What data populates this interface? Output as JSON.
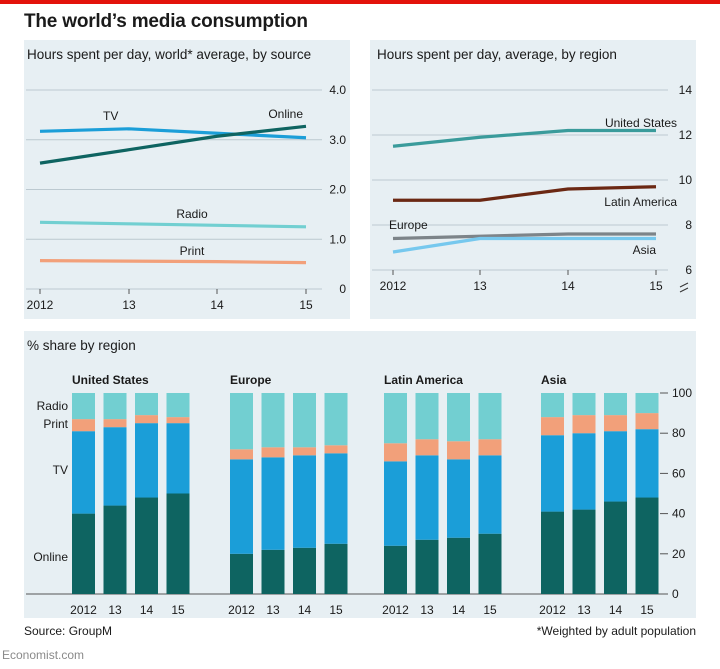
{
  "title": "The world’s media consumption",
  "source": "Source: GroupM",
  "footnote": "*Weighted by adult population",
  "brand": "Economist.com",
  "colors": {
    "online": "#0e6461",
    "tv": "#1b9ed8",
    "print": "#f2a07a",
    "radio": "#72cfd1",
    "us": "#3a9b9b",
    "latin": "#6b2813",
    "europe": "#7d8489",
    "asia": "#76c8ee",
    "brand_red": "#e3120b"
  },
  "chart_data": [
    {
      "type": "line",
      "title": "Hours spent per day, world* average, by source",
      "x": [
        2012,
        2013,
        2014,
        2015
      ],
      "xticks": [
        "2012",
        "13",
        "14",
        "15"
      ],
      "ylim": [
        0,
        4.0
      ],
      "yticks": [
        "0",
        "1.0",
        "2.0",
        "3.0",
        "4.0"
      ],
      "series": [
        {
          "name": "TV",
          "values": [
            3.17,
            3.22,
            3.13,
            3.04
          ]
        },
        {
          "name": "Online",
          "values": [
            2.53,
            2.8,
            3.07,
            3.27
          ]
        },
        {
          "name": "Radio",
          "values": [
            1.34,
            1.31,
            1.28,
            1.25
          ]
        },
        {
          "name": "Print",
          "values": [
            0.57,
            0.56,
            0.55,
            0.53
          ]
        }
      ]
    },
    {
      "type": "line",
      "title": "Hours spent per day, average, by region",
      "x": [
        2012,
        2013,
        2014,
        2015
      ],
      "xticks": [
        "2012",
        "13",
        "14",
        "15"
      ],
      "ylim": [
        6,
        14
      ],
      "yticks": [
        "6",
        "8",
        "10",
        "12",
        "14"
      ],
      "series": [
        {
          "name": "United States",
          "values": [
            11.5,
            11.9,
            12.2,
            12.2
          ]
        },
        {
          "name": "Latin America",
          "values": [
            9.1,
            9.1,
            9.6,
            9.7
          ]
        },
        {
          "name": "Europe",
          "values": [
            7.4,
            7.5,
            7.6,
            7.6
          ]
        },
        {
          "name": "Asia",
          "values": [
            6.8,
            7.4,
            7.4,
            7.4
          ]
        }
      ]
    },
    {
      "type": "bar",
      "title": "% share by region",
      "stacked": true,
      "ylim": [
        0,
        100
      ],
      "yticks": [
        "0",
        "20",
        "40",
        "60",
        "80",
        "100"
      ],
      "categories": [
        "2012",
        "13",
        "14",
        "15"
      ],
      "stack_order": [
        "Online",
        "TV",
        "Print",
        "Radio"
      ],
      "groups": [
        {
          "name": "United States",
          "series": [
            {
              "name": "Online",
              "values": [
                40,
                44,
                48,
                50
              ]
            },
            {
              "name": "TV",
              "values": [
                41,
                39,
                37,
                35
              ]
            },
            {
              "name": "Print",
              "values": [
                6,
                4,
                4,
                3
              ]
            },
            {
              "name": "Radio",
              "values": [
                13,
                13,
                11,
                12
              ]
            }
          ]
        },
        {
          "name": "Europe",
          "series": [
            {
              "name": "Online",
              "values": [
                20,
                22,
                23,
                25
              ]
            },
            {
              "name": "TV",
              "values": [
                47,
                46,
                46,
                45
              ]
            },
            {
              "name": "Print",
              "values": [
                5,
                5,
                4,
                4
              ]
            },
            {
              "name": "Radio",
              "values": [
                28,
                27,
                27,
                26
              ]
            }
          ]
        },
        {
          "name": "Latin America",
          "series": [
            {
              "name": "Online",
              "values": [
                24,
                27,
                28,
                30
              ]
            },
            {
              "name": "TV",
              "values": [
                42,
                42,
                39,
                39
              ]
            },
            {
              "name": "Print",
              "values": [
                9,
                8,
                9,
                8
              ]
            },
            {
              "name": "Radio",
              "values": [
                25,
                23,
                24,
                23
              ]
            }
          ]
        },
        {
          "name": "Asia",
          "series": [
            {
              "name": "Online",
              "values": [
                41,
                42,
                46,
                48
              ]
            },
            {
              "name": "TV",
              "values": [
                38,
                38,
                35,
                34
              ]
            },
            {
              "name": "Print",
              "values": [
                9,
                9,
                8,
                8
              ]
            },
            {
              "name": "Radio",
              "values": [
                12,
                11,
                11,
                10
              ]
            }
          ]
        }
      ],
      "left_labels": [
        "Radio",
        "Print",
        "TV",
        "Online"
      ]
    }
  ]
}
